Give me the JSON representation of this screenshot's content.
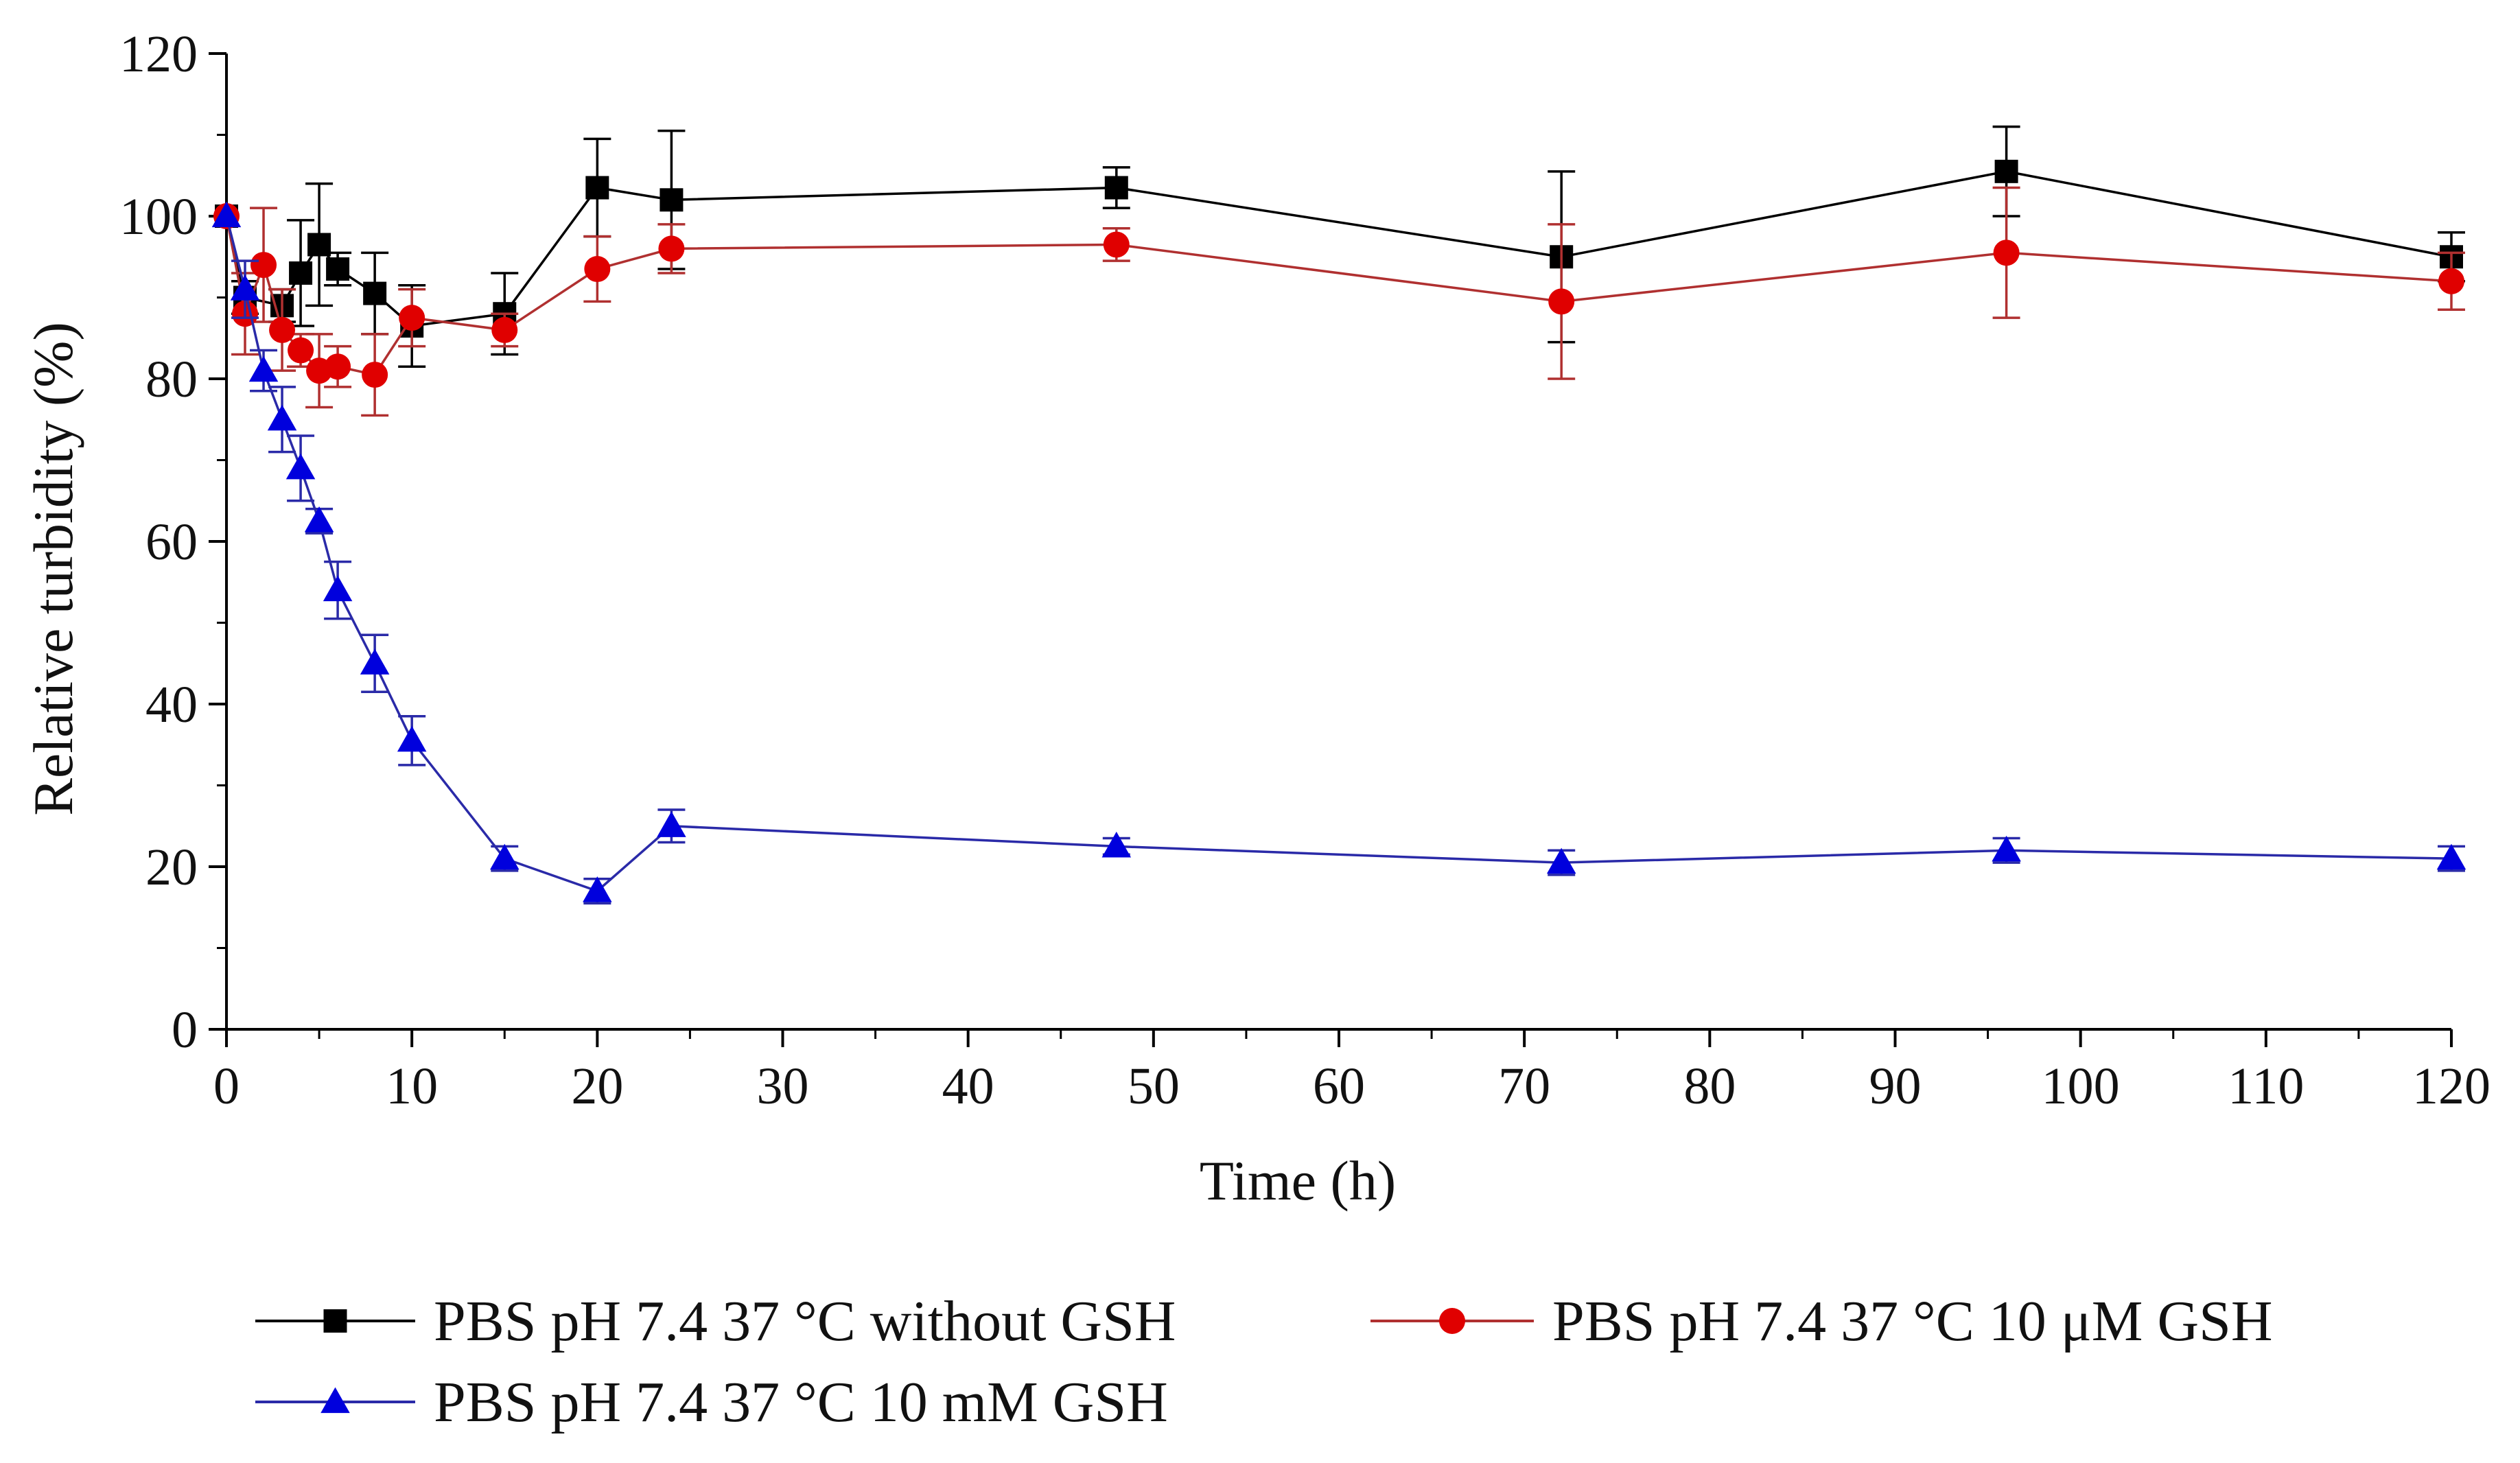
{
  "chart_data": {
    "type": "line",
    "title": "",
    "xlabel": "Time (h)",
    "ylabel": "Relative turbidity (%)",
    "xlim": [
      0,
      120
    ],
    "ylim": [
      0,
      120
    ],
    "x_ticks": [
      0,
      10,
      20,
      30,
      40,
      50,
      60,
      70,
      80,
      90,
      100,
      110,
      120
    ],
    "y_ticks": [
      0,
      20,
      40,
      60,
      80,
      100,
      120
    ],
    "grid": false,
    "legend_position": "bottom",
    "series": [
      {
        "name": "PBS pH 7.4 37 °C without GSH",
        "color": "#000000",
        "marker": "square",
        "points": [
          {
            "x": 0,
            "y": 100,
            "err": 0
          },
          {
            "x": 1,
            "y": 90,
            "err": 2
          },
          {
            "x": 3,
            "y": 89,
            "err": 2
          },
          {
            "x": 4,
            "y": 93,
            "err": 6.5
          },
          {
            "x": 5,
            "y": 96.5,
            "err": 7.5
          },
          {
            "x": 6,
            "y": 93.5,
            "err": 2
          },
          {
            "x": 8,
            "y": 90.5,
            "err": 5
          },
          {
            "x": 10,
            "y": 86.5,
            "err": 5
          },
          {
            "x": 15,
            "y": 88,
            "err": 5
          },
          {
            "x": 20,
            "y": 103.5,
            "err": 6
          },
          {
            "x": 24,
            "y": 102,
            "err": 8.5
          },
          {
            "x": 48,
            "y": 103.5,
            "err": 2.5
          },
          {
            "x": 72,
            "y": 95,
            "err": 10.5
          },
          {
            "x": 96,
            "y": 105.5,
            "err": 5.5
          },
          {
            "x": 120,
            "y": 95,
            "err": 3
          }
        ]
      },
      {
        "name": "PBS pH 7.4 37 °C 10 μM GSH",
        "color": "#e00000",
        "line_color": "#b03030",
        "marker": "circle",
        "points": [
          {
            "x": 0,
            "y": 100,
            "err": 0
          },
          {
            "x": 1,
            "y": 88,
            "err": 5
          },
          {
            "x": 2,
            "y": 94,
            "err": 7
          },
          {
            "x": 3,
            "y": 86,
            "err": 5
          },
          {
            "x": 4,
            "y": 83.5,
            "err": 2
          },
          {
            "x": 5,
            "y": 81,
            "err": 4.5
          },
          {
            "x": 6,
            "y": 81.5,
            "err": 2.5
          },
          {
            "x": 8,
            "y": 80.5,
            "err": 5
          },
          {
            "x": 10,
            "y": 87.5,
            "err": 3.5
          },
          {
            "x": 15,
            "y": 86,
            "err": 2
          },
          {
            "x": 20,
            "y": 93.5,
            "err": 4
          },
          {
            "x": 24,
            "y": 96,
            "err": 3
          },
          {
            "x": 48,
            "y": 96.5,
            "err": 2
          },
          {
            "x": 72,
            "y": 89.5,
            "err": 9.5
          },
          {
            "x": 96,
            "y": 95.5,
            "err": 8
          },
          {
            "x": 120,
            "y": 92,
            "err": 3.5
          }
        ]
      },
      {
        "name": "PBS pH 7.4 37 °C 10 mM GSH",
        "color": "#0000dd",
        "line_color": "#2a2aa8",
        "marker": "triangle",
        "points": [
          {
            "x": 0,
            "y": 100,
            "err": 0
          },
          {
            "x": 1,
            "y": 91,
            "err": 3.5
          },
          {
            "x": 2,
            "y": 81,
            "err": 2.5
          },
          {
            "x": 3,
            "y": 75,
            "err": 4
          },
          {
            "x": 4,
            "y": 69,
            "err": 4
          },
          {
            "x": 5,
            "y": 62.5,
            "err": 1.5
          },
          {
            "x": 6,
            "y": 54,
            "err": 3.5
          },
          {
            "x": 8,
            "y": 45,
            "err": 3.5
          },
          {
            "x": 10,
            "y": 35.5,
            "err": 3
          },
          {
            "x": 15,
            "y": 21,
            "err": 1.5
          },
          {
            "x": 20,
            "y": 17,
            "err": 1.5
          },
          {
            "x": 24,
            "y": 25,
            "err": 2
          },
          {
            "x": 48,
            "y": 22.5,
            "err": 1
          },
          {
            "x": 72,
            "y": 20.5,
            "err": 1.5
          },
          {
            "x": 96,
            "y": 22,
            "err": 1.5
          },
          {
            "x": 120,
            "y": 21,
            "err": 1.5
          }
        ]
      }
    ]
  }
}
